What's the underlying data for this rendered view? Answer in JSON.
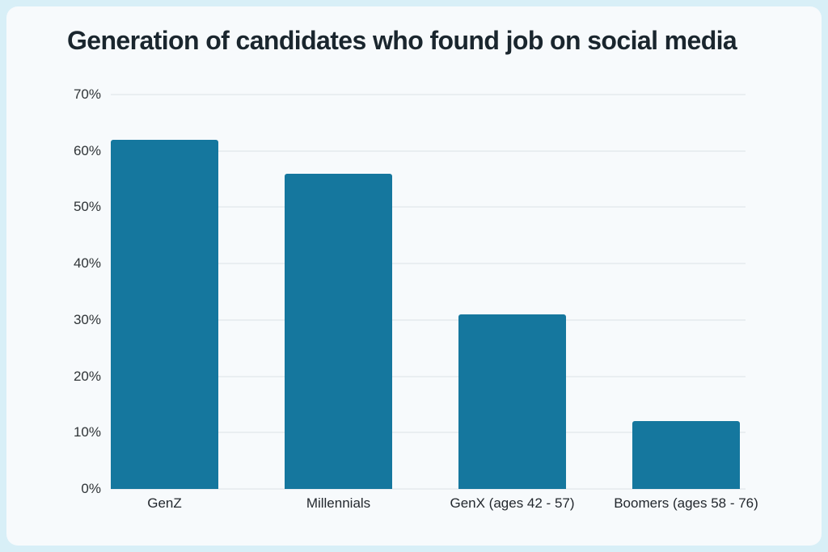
{
  "page": {
    "background_color": "#d8eff7",
    "card_background_color": "#f7fafc"
  },
  "title": "Generation of candidates who found job on social media",
  "chart_data": {
    "type": "bar",
    "title": "Generation of candidates who found job on social media",
    "categories": [
      "GenZ",
      "Millennials",
      "GenX (ages 42 - 57)",
      "Boomers (ages 58 - 76)"
    ],
    "values": [
      62,
      56,
      31,
      12
    ],
    "unit": "%",
    "xlabel": "",
    "ylabel": "",
    "ylim": [
      0,
      70
    ],
    "yticks": [
      0,
      10,
      20,
      30,
      40,
      50,
      60,
      70
    ],
    "ytick_labels": [
      "0%",
      "10%",
      "20%",
      "30%",
      "40%",
      "50%",
      "60%",
      "70%"
    ],
    "bar_color": "#15779e",
    "grid": true,
    "gridline_color": "#e9eef1",
    "legend_position": "none"
  }
}
